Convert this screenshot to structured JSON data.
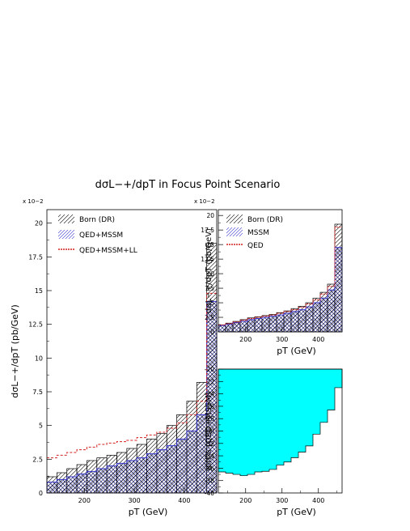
{
  "figure_title": "dσL−+/dpT in Focus Point Scenario",
  "chart_data": [
    {
      "type": "bar",
      "title": "",
      "xlabel": "pT (GeV)",
      "ylabel": "dσL−+/dpT (pb/GeV)",
      "multiplier": "x 10−2",
      "xlim": [
        125,
        465
      ],
      "ylim": [
        0,
        0.21
      ],
      "x_ticks": [
        200,
        300,
        400
      ],
      "y_ticks": [
        0,
        0.025,
        0.05,
        0.075,
        0.1,
        0.125,
        0.15,
        0.175,
        0.2
      ],
      "bin_edges": [
        125,
        145,
        165,
        185,
        205,
        225,
        245,
        265,
        285,
        305,
        325,
        345,
        365,
        385,
        405,
        425,
        445,
        465
      ],
      "legend": [
        {
          "label": "Born (DR)",
          "style": "hatch",
          "color": "#000000"
        },
        {
          "label": "QED+MSSM",
          "style": "hatch",
          "color": "#3333cc"
        },
        {
          "label": "QED+MSSM+LL",
          "style": "dashed",
          "color": "#d42020"
        }
      ],
      "series": [
        {
          "name": "Born (DR)",
          "values": [
            0.012,
            0.015,
            0.018,
            0.021,
            0.024,
            0.026,
            0.028,
            0.03,
            0.033,
            0.036,
            0.04,
            0.044,
            0.05,
            0.058,
            0.068,
            0.082,
            0.185
          ]
        },
        {
          "name": "QED+MSSM",
          "values": [
            0.008,
            0.01,
            0.012,
            0.014,
            0.016,
            0.018,
            0.02,
            0.022,
            0.024,
            0.026,
            0.029,
            0.032,
            0.035,
            0.04,
            0.046,
            0.058,
            0.142
          ]
        },
        {
          "name": "QED+MSSM+LL",
          "values": [
            0.026,
            0.028,
            0.03,
            0.032,
            0.034,
            0.036,
            0.037,
            0.038,
            0.039,
            0.041,
            0.043,
            0.045,
            0.048,
            0.052,
            0.058,
            0.068,
            0.148
          ]
        }
      ]
    },
    {
      "type": "bar",
      "title": "",
      "xlabel": "pT (GeV)",
      "ylabel": "dσL−+/dpT (pb/GeV)",
      "multiplier": "x 10−2",
      "xlim": [
        125,
        465
      ],
      "ylim": [
        0,
        0.21
      ],
      "x_ticks": [
        200,
        300,
        400
      ],
      "y_ticks": [
        0,
        0.025,
        0.05,
        0.075,
        0.1,
        0.125,
        0.15,
        0.175,
        0.2
      ],
      "bin_edges": [
        125,
        145,
        165,
        185,
        205,
        225,
        245,
        265,
        285,
        305,
        325,
        345,
        365,
        385,
        405,
        425,
        445,
        465
      ],
      "legend": [
        {
          "label": "Born (DR)",
          "style": "hatch",
          "color": "#000000"
        },
        {
          "label": "MSSM",
          "style": "hatch",
          "color": "#3333cc"
        },
        {
          "label": "QED",
          "style": "dashed",
          "color": "#d42020"
        }
      ],
      "series": [
        {
          "name": "Born (DR)",
          "values": [
            0.012,
            0.015,
            0.018,
            0.021,
            0.024,
            0.026,
            0.028,
            0.03,
            0.033,
            0.036,
            0.04,
            0.044,
            0.05,
            0.058,
            0.068,
            0.082,
            0.185
          ]
        },
        {
          "name": "MSSM",
          "values": [
            0.011,
            0.013,
            0.016,
            0.018,
            0.021,
            0.023,
            0.025,
            0.027,
            0.029,
            0.032,
            0.035,
            0.038,
            0.043,
            0.05,
            0.058,
            0.072,
            0.145
          ]
        },
        {
          "name": "QED",
          "values": [
            0.012,
            0.014,
            0.017,
            0.02,
            0.023,
            0.025,
            0.027,
            0.029,
            0.032,
            0.035,
            0.038,
            0.042,
            0.048,
            0.055,
            0.065,
            0.078,
            0.18
          ]
        }
      ]
    },
    {
      "type": "area",
      "title": "",
      "xlabel": "pT (GeV)",
      "ylabel": "diff% (QED+MSSM)",
      "xlim": [
        125,
        465
      ],
      "ylim": [
        -40,
        -20
      ],
      "x_ticks": [
        200,
        300,
        400
      ],
      "y_ticks": [
        -40,
        -38,
        -36,
        -34,
        -32,
        -30,
        -28,
        -26,
        -24,
        -22,
        -20
      ],
      "fill_color": "#00ffff",
      "bin_edges": [
        125,
        145,
        165,
        185,
        205,
        225,
        245,
        265,
        285,
        305,
        325,
        345,
        365,
        385,
        405,
        425,
        445,
        465
      ],
      "values": [
        -36.6,
        -36.8,
        -37.0,
        -37.2,
        -37.0,
        -36.6,
        -36.5,
        -36.2,
        -35.5,
        -35.0,
        -34.3,
        -33.4,
        -32.4,
        -30.5,
        -28.6,
        -26.6,
        -23.0
      ]
    }
  ]
}
